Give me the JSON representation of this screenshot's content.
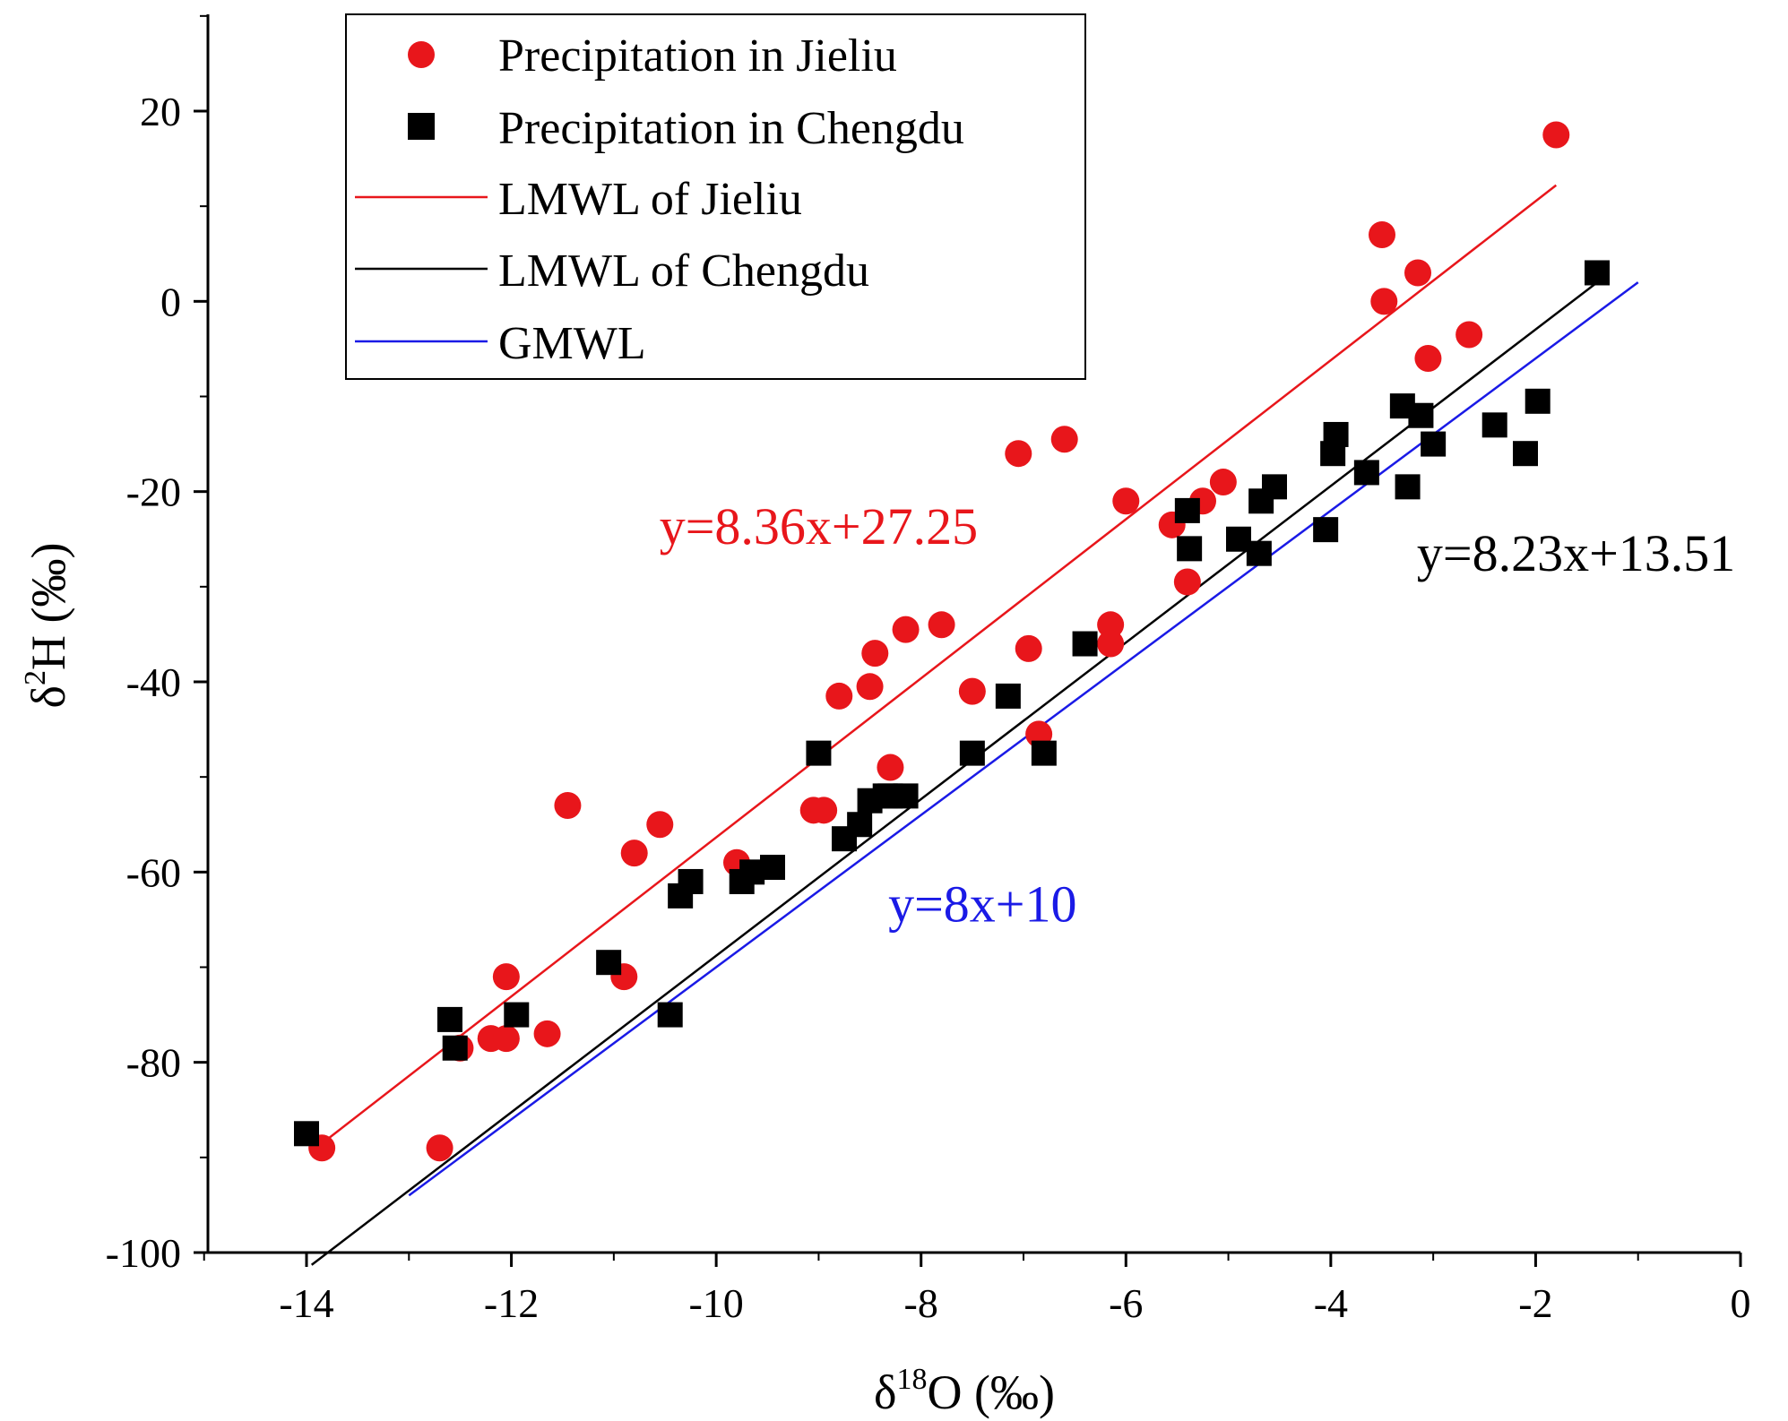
{
  "chart_data": {
    "type": "scatter",
    "xlabel": "δ18O (‰)",
    "ylabel": "δ2H (‰)",
    "xlim": [
      -15,
      0
    ],
    "ylim": [
      -100,
      30
    ],
    "x_ticks": [
      -14,
      -12,
      -10,
      -8,
      -6,
      -4,
      -2,
      0
    ],
    "y_ticks": [
      -100,
      -80,
      -60,
      -40,
      -20,
      0,
      20
    ],
    "x_tick_labels": [
      "-14",
      "-12",
      "-10",
      "-8",
      "-6",
      "-4",
      "-2",
      "0"
    ],
    "y_tick_labels": [
      "-100",
      "-80",
      "-60",
      "-40",
      "-20",
      "0",
      "20"
    ],
    "legend": {
      "placement": "top-left",
      "entries": [
        "Precipitation in Jieliu",
        "Precipitation in Chengdu",
        "LMWL of Jieliu",
        "LMWL of Chengdu",
        "GMWL"
      ]
    },
    "colors": {
      "jieliu": "#e8161b",
      "chengdu": "#000000",
      "gmwl": "#1a1ae6"
    },
    "series": [
      {
        "name": "Precipitation in Jieliu",
        "kind": "points",
        "marker": "circle",
        "color": "#e8161b",
        "points": [
          [
            -13.85,
            -89
          ],
          [
            -12.7,
            -89
          ],
          [
            -12.5,
            -78.5
          ],
          [
            -12.2,
            -77.5
          ],
          [
            -12.05,
            -77.5
          ],
          [
            -12.05,
            -71
          ],
          [
            -11.65,
            -77
          ],
          [
            -11.45,
            -53
          ],
          [
            -10.9,
            -71
          ],
          [
            -10.8,
            -58
          ],
          [
            -10.55,
            -55
          ],
          [
            -9.8,
            -59
          ],
          [
            -9.05,
            -53.5
          ],
          [
            -8.95,
            -53.5
          ],
          [
            -8.8,
            -41.5
          ],
          [
            -8.5,
            -40.5
          ],
          [
            -8.45,
            -37
          ],
          [
            -8.3,
            -49
          ],
          [
            -8.15,
            -34.5
          ],
          [
            -7.8,
            -34
          ],
          [
            -7.5,
            -41
          ],
          [
            -7.05,
            -16
          ],
          [
            -6.95,
            -36.5
          ],
          [
            -6.85,
            -45.5
          ],
          [
            -6.6,
            -14.5
          ],
          [
            -6.15,
            -34
          ],
          [
            -6.15,
            -36
          ],
          [
            -6.0,
            -21
          ],
          [
            -5.55,
            -23.5
          ],
          [
            -5.4,
            -29.5
          ],
          [
            -5.25,
            -21
          ],
          [
            -5.05,
            -19
          ],
          [
            -3.5,
            7
          ],
          [
            -3.48,
            0
          ],
          [
            -3.15,
            3
          ],
          [
            -3.05,
            -6
          ],
          [
            -2.65,
            -3.5
          ],
          [
            -1.8,
            17.5
          ]
        ]
      },
      {
        "name": "Precipitation in Chengdu",
        "kind": "points",
        "marker": "square",
        "color": "#000000",
        "points": [
          [
            -14.0,
            -87.5
          ],
          [
            -12.6,
            -75.5
          ],
          [
            -12.55,
            -78.5
          ],
          [
            -11.95,
            -75
          ],
          [
            -11.05,
            -69.5
          ],
          [
            -10.45,
            -75
          ],
          [
            -10.35,
            -62.5
          ],
          [
            -10.25,
            -61
          ],
          [
            -9.75,
            -61
          ],
          [
            -9.65,
            -60
          ],
          [
            -9.45,
            -59.5
          ],
          [
            -9.0,
            -47.5
          ],
          [
            -8.75,
            -56.5
          ],
          [
            -8.6,
            -55
          ],
          [
            -8.5,
            -52.5
          ],
          [
            -8.35,
            -52
          ],
          [
            -8.3,
            -52
          ],
          [
            -8.15,
            -52
          ],
          [
            -7.5,
            -47.5
          ],
          [
            -7.15,
            -41.5
          ],
          [
            -6.8,
            -47.5
          ],
          [
            -6.4,
            -36
          ],
          [
            -5.4,
            -22
          ],
          [
            -5.38,
            -26
          ],
          [
            -4.9,
            -25
          ],
          [
            -4.7,
            -26.5
          ],
          [
            -4.68,
            -21
          ],
          [
            -4.55,
            -19.5
          ],
          [
            -4.05,
            -24
          ],
          [
            -3.98,
            -16
          ],
          [
            -3.95,
            -14
          ],
          [
            -3.65,
            -18
          ],
          [
            -3.3,
            -11
          ],
          [
            -3.25,
            -19.5
          ],
          [
            -3.12,
            -12
          ],
          [
            -3.0,
            -15
          ],
          [
            -2.4,
            -13
          ],
          [
            -2.1,
            -16
          ],
          [
            -1.98,
            -10.5
          ],
          [
            -1.4,
            3
          ]
        ]
      },
      {
        "name": "LMWL of Jieliu",
        "kind": "line",
        "slope": 8.36,
        "intercept": 27.25,
        "x_range": [
          -13.9,
          -1.8
        ],
        "color": "#e8161b"
      },
      {
        "name": "LMWL of Chengdu",
        "kind": "line",
        "slope": 8.23,
        "intercept": 13.51,
        "x_range": [
          -13.95,
          -1.4
        ],
        "color": "#000000"
      },
      {
        "name": "GMWL",
        "kind": "line",
        "slope": 8,
        "intercept": 10,
        "x_range": [
          -13.0,
          -1.0
        ],
        "color": "#1a1ae6"
      }
    ],
    "annotations": [
      {
        "text": "y=8.36x+27.25",
        "x": -9.0,
        "y": -25.5,
        "color": "#e8161b"
      },
      {
        "text": "y=8.23x+13.51",
        "x": -0.05,
        "y": -28.3,
        "color": "#000000"
      },
      {
        "text": "y=8x+10",
        "x": -7.4,
        "y": -65.2,
        "color": "#1a1ae6"
      }
    ]
  }
}
